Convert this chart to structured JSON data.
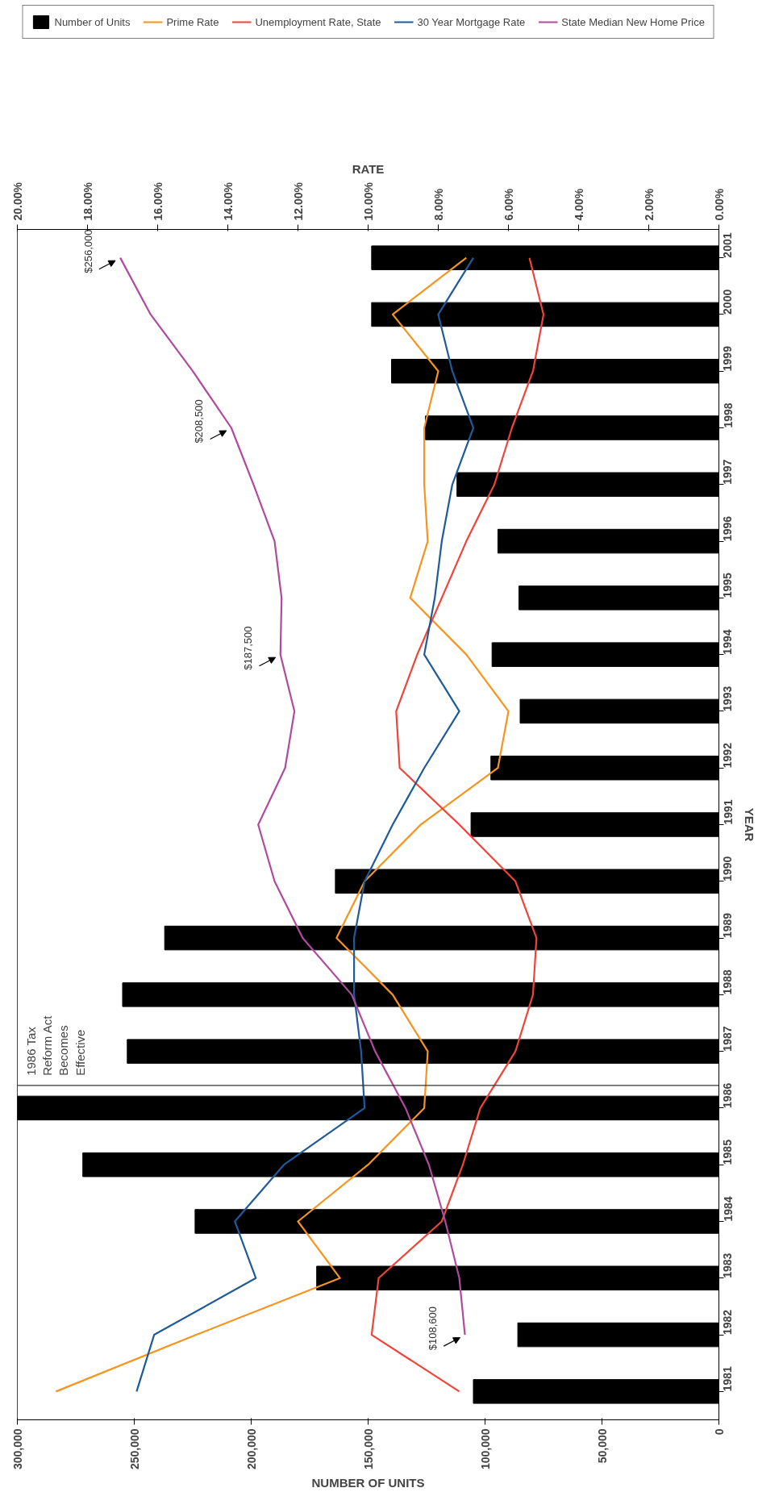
{
  "chart_data": {
    "type": "bar",
    "orientation": "horizontal",
    "xlabel": "NUMBER OF UNITS",
    "ylabel": "YEAR",
    "x2label": "RATE",
    "x": [
      1981,
      1982,
      1983,
      1984,
      1985,
      1986,
      1987,
      1988,
      1989,
      1990,
      1991,
      1992,
      1993,
      1994,
      1995,
      1996,
      1997,
      1998,
      1999,
      2000,
      2001
    ],
    "ylim": [
      1980.5,
      2001.5
    ],
    "yticks": [
      1981,
      1982,
      1983,
      1984,
      1985,
      1986,
      1987,
      1988,
      1989,
      1990,
      1991,
      1992,
      1993,
      1994,
      1995,
      1996,
      1997,
      1998,
      1999,
      2000,
      2001
    ],
    "xlim": [
      300000,
      0
    ],
    "xticks": [
      0,
      {
        "value": 50000,
        "label": "50,000"
      },
      {
        "value": 100000,
        "label": "100,000"
      },
      {
        "value": 150000,
        "label": "150,000"
      },
      {
        "value": 200000,
        "label": "200,000"
      },
      {
        "value": 250000,
        "label": "250,000"
      },
      {
        "value": 300000,
        "label": "300,000"
      }
    ],
    "x2lim": [
      20,
      0
    ],
    "x2ticks": [
      {
        "value": 0,
        "label": "0.00%"
      },
      {
        "value": 2,
        "label": "2.00%"
      },
      {
        "value": 4,
        "label": "4.00%"
      },
      {
        "value": 6,
        "label": "6.00%"
      },
      {
        "value": 8,
        "label": "8.00%"
      },
      {
        "value": 10,
        "label": "10.00%"
      },
      {
        "value": 12,
        "label": "12.00%"
      },
      {
        "value": 14,
        "label": "14.00%"
      },
      {
        "value": 16,
        "label": "16.00%"
      },
      {
        "value": 18,
        "label": "18.00%"
      },
      {
        "value": 20,
        "label": "20.00%"
      }
    ],
    "series": [
      {
        "name": "Number of Units",
        "color": "#000000",
        "values": [
          105000,
          86000,
          172000,
          224000,
          272000,
          300000,
          253000,
          255000,
          237000,
          164000,
          106000,
          97500,
          85000,
          97000,
          85500,
          94500,
          112000,
          125500,
          140000,
          148500,
          148500
        ]
      },
      {
        "name": "Prime Rate",
        "type": "line",
        "axis": "x2",
        "color": "#f7941d",
        "values": [
          18.9,
          14.9,
          10.8,
          12.0,
          10.0,
          8.4,
          8.3,
          9.3,
          10.9,
          10.1,
          8.5,
          6.3,
          6.0,
          7.2,
          8.8,
          8.3,
          8.4,
          8.4,
          8.0,
          9.3,
          7.2
        ]
      },
      {
        "name": "Unemployment Rate, State",
        "type": "line",
        "axis": "x2",
        "color": "#f0433a",
        "values": [
          7.4,
          9.9,
          9.7,
          7.9,
          7.3,
          6.8,
          5.8,
          5.3,
          5.2,
          5.8,
          7.4,
          9.1,
          9.2,
          8.6,
          7.9,
          7.2,
          6.4,
          5.9,
          5.3,
          5.0,
          5.4
        ]
      },
      {
        "name": "30 Year Mortgage Rate",
        "type": "line",
        "axis": "x2",
        "color": "#1f5a9a",
        "values": [
          16.6,
          16.1,
          13.2,
          13.8,
          12.4,
          10.1,
          10.2,
          10.4,
          10.4,
          10.1,
          9.3,
          8.4,
          7.4,
          8.4,
          8.1,
          7.9,
          7.6,
          7.0,
          7.6,
          8.0,
          7.0
        ]
      },
      {
        "name": "State Median New Home Price",
        "type": "line",
        "color": "#b04a9e",
        "values": [
          null,
          108600,
          111000,
          117000,
          124000,
          134000,
          147000,
          157000,
          178000,
          190000,
          197000,
          185500,
          181500,
          187500,
          187000,
          190000,
          199000,
          208500,
          225000,
          243000,
          256000
        ]
      }
    ],
    "annotations": [
      {
        "text": "$108,600",
        "x": 108600,
        "y": 1982
      },
      {
        "text": "$187,500",
        "x": 187500,
        "y": 1994
      },
      {
        "text": "$208,500",
        "x": 208500,
        "y": 1998
      },
      {
        "text": "$256,000",
        "x": 256000,
        "y": 2001
      }
    ],
    "ref_lines": [
      {
        "axis": "y",
        "value": 1986.4,
        "label": "1986 Tax Reform Act Becomes Effective",
        "color": "#333333"
      }
    ],
    "legend": "top right"
  }
}
